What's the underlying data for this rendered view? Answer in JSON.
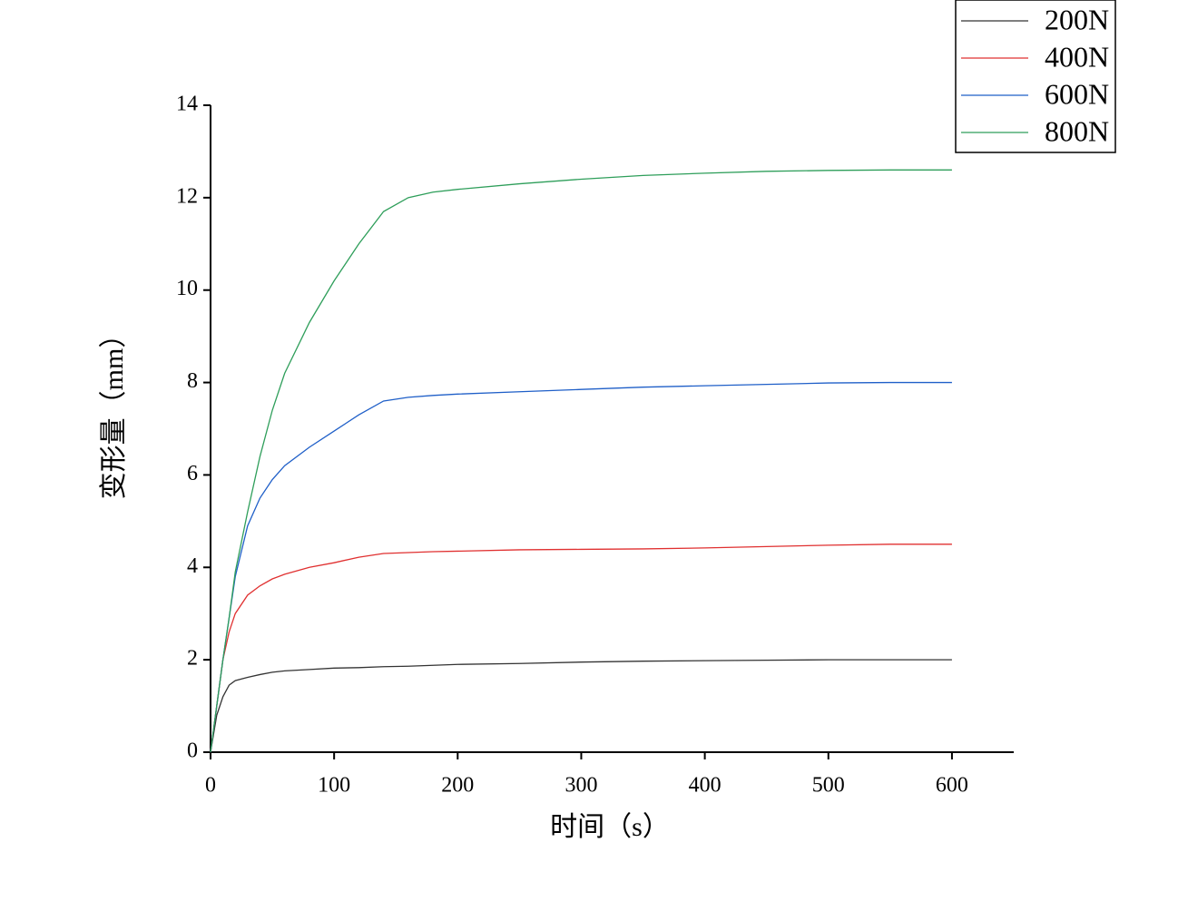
{
  "chart_data": {
    "type": "line",
    "x_label": "时间（s）",
    "y_label": "变形量（mm）",
    "x": [
      0,
      5,
      10,
      15,
      20,
      30,
      40,
      50,
      60,
      80,
      100,
      120,
      140,
      160,
      180,
      200,
      250,
      300,
      350,
      400,
      450,
      500,
      550,
      600
    ],
    "series": [
      {
        "name": "200N",
        "color": "#333333",
        "values": [
          0,
          0.8,
          1.2,
          1.45,
          1.55,
          1.62,
          1.68,
          1.73,
          1.76,
          1.79,
          1.82,
          1.83,
          1.85,
          1.86,
          1.88,
          1.9,
          1.92,
          1.95,
          1.97,
          1.98,
          1.99,
          2.0,
          2.0,
          2.0
        ]
      },
      {
        "name": "400N",
        "color": "#e03030",
        "values": [
          0,
          1.0,
          2.0,
          2.6,
          3.0,
          3.4,
          3.6,
          3.75,
          3.85,
          4.0,
          4.1,
          4.22,
          4.3,
          4.32,
          4.34,
          4.35,
          4.38,
          4.39,
          4.4,
          4.42,
          4.45,
          4.48,
          4.5,
          4.5
        ]
      },
      {
        "name": "600N",
        "color": "#1f5fc8",
        "values": [
          0,
          1.0,
          2.0,
          2.9,
          3.8,
          4.9,
          5.5,
          5.9,
          6.2,
          6.6,
          6.95,
          7.3,
          7.6,
          7.68,
          7.72,
          7.75,
          7.8,
          7.85,
          7.9,
          7.93,
          7.96,
          7.99,
          8.0,
          8.0
        ]
      },
      {
        "name": "800N",
        "color": "#2e9e5a",
        "values": [
          0,
          1.0,
          2.0,
          2.9,
          3.9,
          5.2,
          6.4,
          7.4,
          8.2,
          9.3,
          10.2,
          11.0,
          11.7,
          12.0,
          12.12,
          12.18,
          12.3,
          12.4,
          12.48,
          12.53,
          12.57,
          12.59,
          12.6,
          12.6
        ]
      }
    ],
    "xlim": [
      0,
      650
    ],
    "xticks": [
      0,
      100,
      200,
      300,
      400,
      500,
      600
    ],
    "ylim": [
      0,
      14
    ],
    "yticks": [
      0,
      2,
      4,
      6,
      8,
      10,
      12,
      14
    ],
    "legend": "top-right"
  }
}
